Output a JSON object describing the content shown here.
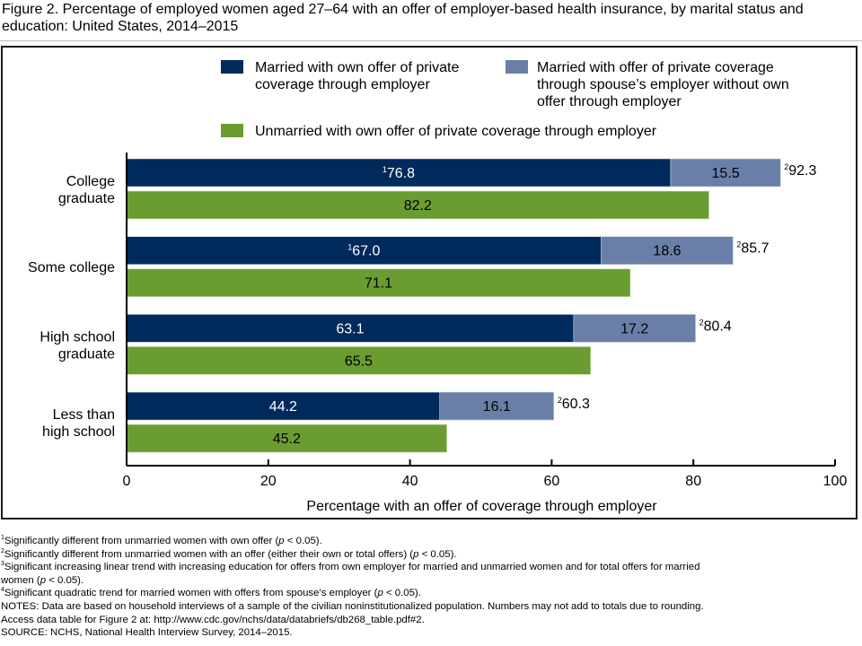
{
  "title": "Figure 2. Percentage of employed women aged 27–64 with an offer of employer-based health insurance, by marital status and education: United States, 2014–2015",
  "colors": {
    "married_own": "#002a5c",
    "married_spouse": "#6a7fa8",
    "unmarried_own": "#6b9c32",
    "frame": "#1a1a1a"
  },
  "legend": [
    {
      "key": "married_own",
      "label_lines": [
        "Married with own offer of private",
        "coverage through employer"
      ]
    },
    {
      "key": "married_spouse",
      "label_lines": [
        "Married with offer of private coverage",
        "through spouse’s employer without own",
        "offer through employer"
      ]
    },
    {
      "key": "unmarried_own",
      "label_lines": [
        "Unmarried with own offer of private coverage through employer"
      ]
    }
  ],
  "chart_data": {
    "type": "bar",
    "orientation": "horizontal",
    "stacked_married": true,
    "title": "Figure 2. Percentage of employed women aged 27–64 with an offer of employer-based health insurance, by marital status and education: United States, 2014–2015",
    "xlabel": "Percentage with an offer of coverage through employer",
    "ylabel": "",
    "xlim": [
      0,
      100
    ],
    "xticks": [
      0,
      20,
      40,
      60,
      80,
      100
    ],
    "grid": false,
    "legend_position": "top",
    "categories": [
      {
        "label_lines": [
          "College",
          "graduate"
        ]
      },
      {
        "label_lines": [
          "Some college"
        ]
      },
      {
        "label_lines": [
          "High school",
          "graduate"
        ]
      },
      {
        "label_lines": [
          "Less than",
          "high school"
        ]
      }
    ],
    "series": [
      {
        "name": "Married with own offer of private coverage through employer",
        "key": "married_own",
        "values": [
          76.8,
          67.0,
          63.1,
          44.2
        ],
        "labels": [
          "76.8",
          "67.0",
          "63.1",
          "44.2"
        ],
        "label_superscripts": [
          "1",
          "1",
          "",
          ""
        ]
      },
      {
        "name": "Married with offer of private coverage through spouse’s employer without own offer through employer",
        "key": "married_spouse",
        "values": [
          15.5,
          18.6,
          17.2,
          16.1
        ],
        "labels": [
          "15.5",
          "18.6",
          "17.2",
          "16.1"
        ],
        "label_superscripts": [
          "",
          "",
          "",
          ""
        ]
      },
      {
        "name": "Unmarried with own offer of private coverage through employer",
        "key": "unmarried_own",
        "values": [
          82.2,
          71.1,
          65.5,
          45.2
        ],
        "labels": [
          "82.2",
          "71.1",
          "65.5",
          "45.2"
        ],
        "label_superscripts": [
          "",
          "",
          "",
          ""
        ]
      }
    ],
    "married_totals": {
      "values": [
        92.3,
        85.7,
        80.4,
        60.3
      ],
      "labels": [
        "92.3",
        "85.7",
        "80.4",
        "60.3"
      ],
      "label_superscripts": [
        "2",
        "2",
        "2",
        "2"
      ]
    }
  },
  "footnotes": [
    {
      "sup": "1",
      "text": "Significantly different from unmarried women with own offer (",
      "italic": "p",
      "after": " < 0.05)."
    },
    {
      "sup": "2",
      "text": "Significantly different from unmarried women with an offer (either their own or total offers) (",
      "italic": "p",
      "after": " < 0.05)."
    },
    {
      "sup": "3",
      "text": "Significant increasing linear trend with increasing education for offers from own employer for married and unmarried women and for total offers for married",
      "italic": "",
      "after": ""
    },
    {
      "sup": "",
      "text": "women (",
      "italic": "p",
      "after": " < 0.05)."
    },
    {
      "sup": "4",
      "text": "Significant quadratic trend for married women with offers from spouse’s employer (",
      "italic": "p",
      "after": " < 0.05)."
    }
  ],
  "notes": "NOTES: Data are based on household interviews of a sample of the civilian noninstitutionalized population. Numbers may not add to totals due to rounding.",
  "access": "Access data table for Figure 2 at: http://www.cdc.gov/nchs/data/databriefs/db268_table.pdf#2.",
  "source": "SOURCE: NCHS, National Health Interview Survey, 2014–2015."
}
